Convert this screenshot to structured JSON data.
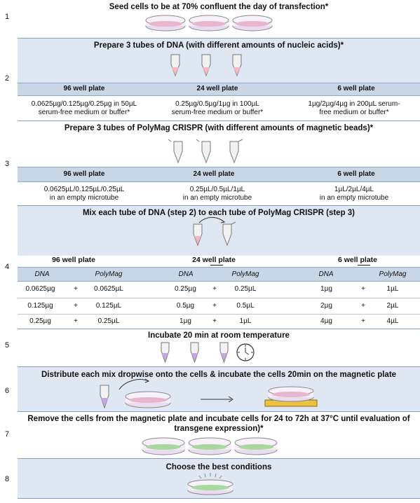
{
  "steps": [
    {
      "num": "1",
      "title": "Seed cells to be at 70% confluent the day of transfection*"
    },
    {
      "num": "2",
      "title": "Prepare 3 tubes of DNA (with different amounts of nucleic acids)*",
      "cols": [
        {
          "header": "96 well plate",
          "line1": "0.0625µg/0.125µg/0.25µg in 50µL",
          "line2": "serum-free medium or buffer*"
        },
        {
          "header": "24 well plate",
          "line1": "0.25µg/0.5µg/1µg in 100µL",
          "line2": "serum-free medium or buffer*"
        },
        {
          "header": "6 well plate",
          "line1": "1µg/2µg/4µg in 200µL serum-",
          "line2": "free medium or buffer*"
        }
      ]
    },
    {
      "num": "3",
      "title": "Prepare 3 tubes of PolyMag CRISPR (with different amounts of magnetic beads)*",
      "cols": [
        {
          "header": "96 well plate",
          "line1": "0.0625µL/0.125µL/0.25µL",
          "line2": "in an empty microtube"
        },
        {
          "header": "24 well plate",
          "line1": "0.25µL/0.5µL/1µL",
          "line2": "in an empty microtube"
        },
        {
          "header": "6 well plate",
          "line1": "1µL/2µL/4µL",
          "line2": "in an empty microtube"
        }
      ]
    },
    {
      "num": "4",
      "title": "Mix each tube of DNA (step 2) to each tube of PolyMag CRISPR (step 3)",
      "plates": [
        "96 well plate",
        "24 well plate",
        "6 well plate"
      ],
      "sub": {
        "dna": "DNA",
        "poly": "PolyMag",
        "plus": "+"
      },
      "rows": [
        [
          "0.0625µg",
          "0.0625µL",
          "0.25µg",
          "0.25µL",
          "1µg",
          "1µL"
        ],
        [
          "0.125µg",
          "0.125µL",
          "0.5µg",
          "0.5µL",
          "2µg",
          "2µL"
        ],
        [
          "0.25µg",
          "0.25µL",
          "1µg",
          "1µL",
          "4µg",
          "4µL"
        ]
      ]
    },
    {
      "num": "5",
      "title": "Incubate 20 min at room temperature"
    },
    {
      "num": "6",
      "title": "Distribute each mix dropwise onto the cells & incubate the cells 20min on the magnetic plate"
    },
    {
      "num": "7",
      "title": "Remove the cells from the magnetic plate and incubate cells for 24 to 72h at 37°C until evaluation of",
      "title2": "transgene expression)*"
    },
    {
      "num": "8",
      "title": "Choose the best conditions"
    }
  ],
  "colors": {
    "band": "#dfe8f2",
    "header": "#c9d6e6",
    "rule": "#7f9fc4",
    "pink": "#f4b8c4",
    "purple": "#c9a6e4",
    "green": "#7fd07f",
    "gold": "#e8c440"
  }
}
